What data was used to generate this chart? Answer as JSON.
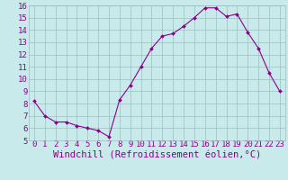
{
  "x": [
    0,
    1,
    2,
    3,
    4,
    5,
    6,
    7,
    8,
    9,
    10,
    11,
    12,
    13,
    14,
    15,
    16,
    17,
    18,
    19,
    20,
    21,
    22,
    23
  ],
  "y": [
    8.2,
    7.0,
    6.5,
    6.5,
    6.2,
    6.0,
    5.8,
    5.3,
    8.3,
    9.5,
    11.0,
    12.5,
    13.5,
    13.7,
    14.3,
    15.0,
    15.8,
    15.8,
    15.1,
    15.3,
    13.8,
    12.5,
    10.5,
    9.0
  ],
  "xlabel": "Windchill (Refroidissement éolien,°C)",
  "ylim": [
    5,
    16
  ],
  "xlim": [
    -0.5,
    23.5
  ],
  "yticks": [
    5,
    6,
    7,
    8,
    9,
    10,
    11,
    12,
    13,
    14,
    15,
    16
  ],
  "xticks": [
    0,
    1,
    2,
    3,
    4,
    5,
    6,
    7,
    8,
    9,
    10,
    11,
    12,
    13,
    14,
    15,
    16,
    17,
    18,
    19,
    20,
    21,
    22,
    23
  ],
  "line_color": "#8b008b",
  "marker_color": "#8b008b",
  "bg_color": "#c8eaea",
  "grid_color": "#9bbfbf",
  "tick_color": "#8b008b",
  "label_color": "#8b008b",
  "tick_fontsize": 6.5,
  "xlabel_fontsize": 7.5
}
